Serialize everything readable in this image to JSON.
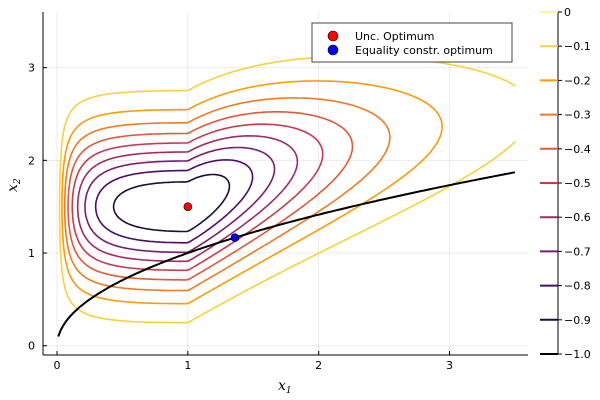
{
  "chart_data": {
    "type": "contour",
    "xlabel": "x",
    "xlabel_sub": "1",
    "ylabel": "x",
    "ylabel_sub": "2",
    "xlim": [
      -0.107,
      3.6
    ],
    "ylim": [
      -0.1,
      3.6
    ],
    "xticks": [
      0,
      1,
      2,
      3
    ],
    "yticks": [
      0,
      1,
      2,
      3
    ],
    "grid": true,
    "levels": [
      -0.9,
      -0.8,
      -0.7,
      -0.6,
      -0.5,
      -0.4,
      -0.3,
      -0.2,
      -0.1
    ],
    "colorbar": {
      "range": [
        -1.0,
        0
      ],
      "ticks": [
        "0",
        "−0.1",
        "−0.2",
        "−0.3",
        "−0.4",
        "−0.5",
        "−0.6",
        "−0.7",
        "−0.8",
        "−0.9",
        "−1.0"
      ],
      "colors": [
        "#fcf6a0",
        "#f8d13d",
        "#fb9b06",
        "#f07b22",
        "#dd5a3a",
        "#c43c50",
        "#a02a62",
        "#7a1c6d",
        "#4b0c6b",
        "#200c3c",
        "#000004"
      ]
    },
    "constraint": {
      "name": "x2 = sqrt(x1)",
      "x_range": [
        0.01,
        3.5
      ],
      "color": "#000000"
    },
    "points": [
      {
        "name": "Unc. Optimum",
        "x": 1.0,
        "y": 1.5,
        "color": "#ff0000"
      },
      {
        "name": "Equality constr. optimum",
        "x": 1.36,
        "y": 1.166,
        "color": "#0000ff"
      }
    ],
    "legend_position": "top-right"
  }
}
